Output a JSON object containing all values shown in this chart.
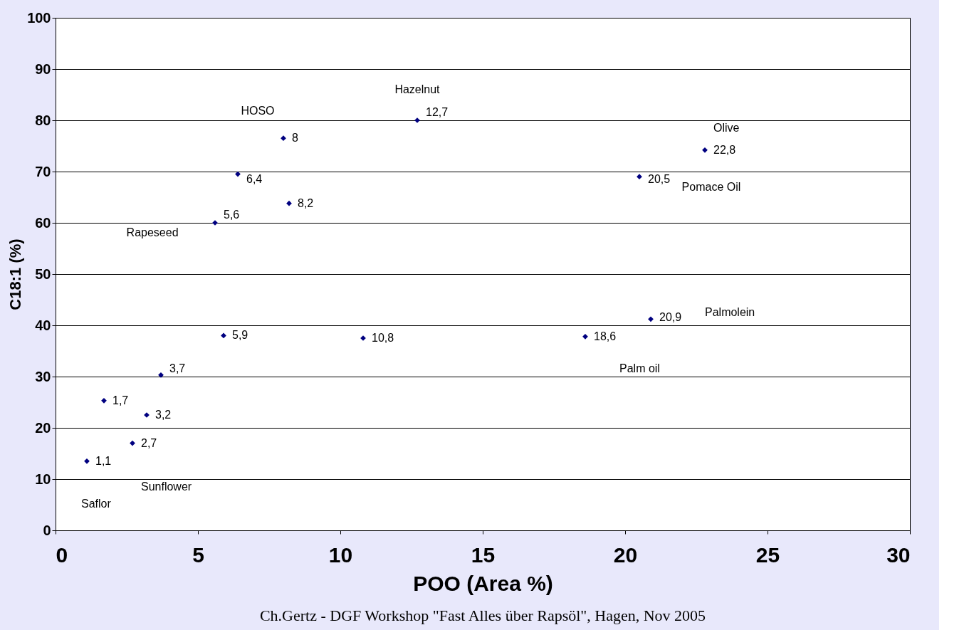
{
  "chart_data": {
    "type": "scatter",
    "xlabel": "POO (Area %)",
    "ylabel": "C18:1 (%)",
    "xlim": [
      0,
      30
    ],
    "xticks": [
      0,
      5,
      10,
      15,
      20,
      25,
      30
    ],
    "ylim": [
      0,
      100
    ],
    "yticks": [
      0,
      10,
      20,
      30,
      40,
      50,
      60,
      70,
      80,
      90,
      100
    ],
    "grid": "y",
    "marker": "diamond",
    "series": [
      {
        "color": "#000080",
        "x": [
          1.1,
          1.7,
          2.7,
          3.2,
          3.7,
          5.6,
          5.9,
          6.4,
          8,
          8.2,
          10.8,
          12.7,
          18.6,
          20.5,
          20.9,
          22.8
        ],
        "values": [
          13.5,
          25.3,
          17,
          22.5,
          30.3,
          60,
          38,
          69.5,
          76.5,
          63.8,
          37.5,
          80,
          37.8,
          69,
          41.2,
          74.2
        ]
      }
    ],
    "annotations": [
      {
        "text": "1,1",
        "x": 1.1,
        "y": 13.5
      },
      {
        "text": "1,7",
        "x": 1.7,
        "y": 25.3
      },
      {
        "text": "2,7",
        "x": 2.7,
        "y": 17
      },
      {
        "text": "3,2",
        "x": 3.2,
        "y": 22.5
      },
      {
        "text": "3,7",
        "x": 3.7,
        "y": 30.3
      },
      {
        "text": "5,6",
        "x": 5.6,
        "y": 60
      },
      {
        "text": "5,9",
        "x": 5.9,
        "y": 38
      },
      {
        "text": "6,4",
        "x": 6.4,
        "y": 69.5
      },
      {
        "text": "8",
        "x": 8,
        "y": 76.5
      },
      {
        "text": "8,2",
        "x": 8.2,
        "y": 63.8
      },
      {
        "text": "10,8",
        "x": 10.8,
        "y": 37.5
      },
      {
        "text": "12,7",
        "x": 12.7,
        "y": 80
      },
      {
        "text": "18,6",
        "x": 18.6,
        "y": 37.8
      },
      {
        "text": "20,5",
        "x": 20.5,
        "y": 69
      },
      {
        "text": "20,9",
        "x": 20.9,
        "y": 41.2
      },
      {
        "text": "22,8",
        "x": 22.8,
        "y": 74.2
      },
      "Hazelnut",
      "HOSO",
      "Olive",
      "Pomace Oil",
      "Rapeseed",
      "Palmolein",
      "Palm oil",
      "Sunflower",
      "Saflor",
      "Ch.Gertz - DGF Workshop \"Fast Alles über Rapsöl\", Hagen, Nov 2005"
    ]
  }
}
